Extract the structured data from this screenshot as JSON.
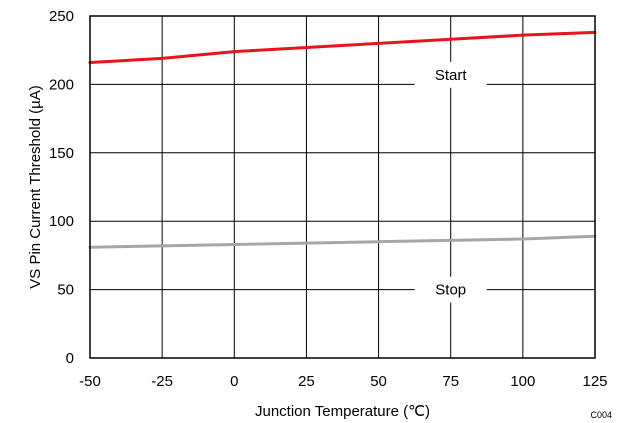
{
  "chart_data": {
    "type": "line",
    "title": "",
    "xlabel": "Junction Temperature (℃)",
    "ylabel": "VS Pin Current Threshold (µA)",
    "xlim": [
      -50,
      125
    ],
    "ylim": [
      0,
      250
    ],
    "x_ticks": [
      -50,
      -25,
      0,
      25,
      50,
      75,
      100,
      125
    ],
    "x_tick_labels": [
      "-50",
      "-25",
      "0",
      "25",
      "50",
      "75",
      "100",
      "125"
    ],
    "y_ticks": [
      0,
      50,
      100,
      150,
      200,
      250
    ],
    "y_tick_labels": [
      "0",
      "50",
      "100",
      "150",
      "200",
      "250"
    ],
    "grid": true,
    "legend": "none",
    "series": [
      {
        "name": "Start",
        "color": "#e8141b",
        "x": [
          -50,
          -25,
          0,
          25,
          50,
          75,
          100,
          125
        ],
        "y": [
          216,
          219,
          224,
          227,
          230,
          233,
          236,
          238
        ]
      },
      {
        "name": "Stop",
        "color": "#a6a6a6",
        "x": [
          -50,
          -25,
          0,
          25,
          50,
          75,
          100,
          125
        ],
        "y": [
          81,
          82,
          83,
          84,
          85,
          86,
          87,
          89
        ]
      }
    ],
    "annotations": [
      {
        "text": "Start",
        "x": 75,
        "y": 207
      },
      {
        "text": "Stop",
        "x": 75,
        "y": 50
      }
    ],
    "corner_code": "C004"
  }
}
